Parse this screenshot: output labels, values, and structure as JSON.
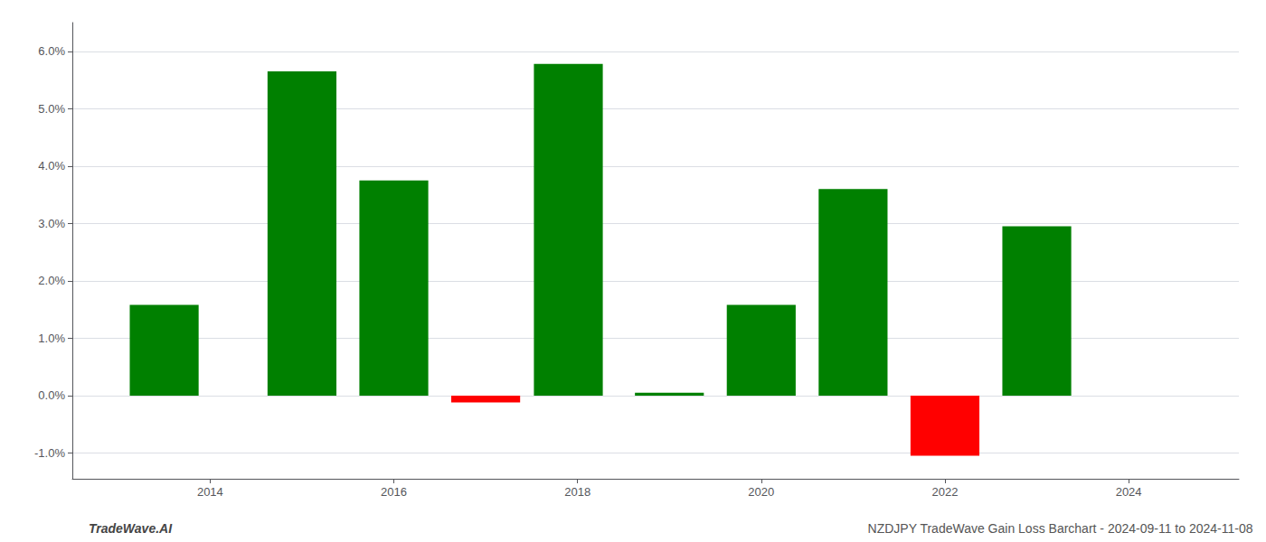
{
  "chart_data": {
    "type": "bar",
    "x": [
      2013.5,
      2015.0,
      2016.0,
      2017.0,
      2017.9,
      2019.0,
      2020.0,
      2021.0,
      2022.0,
      2023.0
    ],
    "values": [
      1.58,
      5.65,
      3.75,
      -0.12,
      5.78,
      0.05,
      1.58,
      3.6,
      -1.05,
      2.95
    ],
    "colors": [
      "#008000",
      "#008000",
      "#008000",
      "#ff0000",
      "#008000",
      "#008000",
      "#008000",
      "#008000",
      "#ff0000",
      "#008000"
    ],
    "xlim": [
      2012.5,
      2025.2
    ],
    "xticks": [
      2014,
      2016,
      2018,
      2020,
      2022,
      2024
    ],
    "ylim": [
      -1.45,
      6.5
    ],
    "yticks": [
      {
        "value": -1.0,
        "label": "-1.0%"
      },
      {
        "value": 0.0,
        "label": "0.0%"
      },
      {
        "value": 1.0,
        "label": "1.0%"
      },
      {
        "value": 2.0,
        "label": "2.0%"
      },
      {
        "value": 3.0,
        "label": "3.0%"
      },
      {
        "value": 4.0,
        "label": "4.0%"
      },
      {
        "value": 5.0,
        "label": "5.0%"
      },
      {
        "value": 6.0,
        "label": "6.0%"
      }
    ],
    "grid": true,
    "annotations": [
      "TradeWave.AI",
      "NZDJPY TradeWave Gain Loss Barchart - 2024-09-11 to 2024-11-08"
    ]
  }
}
